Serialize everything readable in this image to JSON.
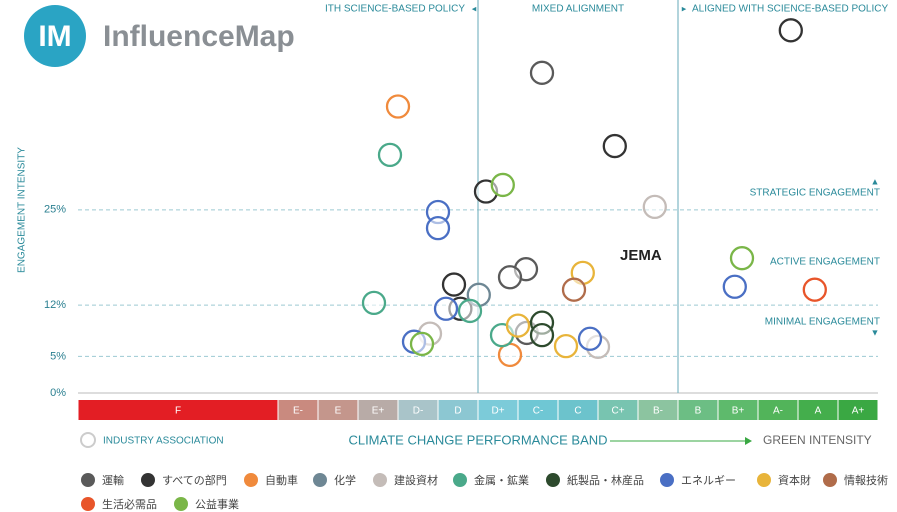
{
  "brand": {
    "logo": "IM",
    "name": "InfluenceMap"
  },
  "chart_data": {
    "type": "scatter",
    "ylabel": "ENGAGEMENT INTENSITY",
    "xlabel": "CLIMATE CHANGE PERFORMANCE BAND",
    "green_label": "GREEN INTENSITY",
    "association_label": "INDUSTRY ASSOCIATION",
    "annotation": "JEMA",
    "xlim": [
      0,
      100
    ],
    "ylim": [
      0,
      52
    ],
    "yticks": [
      {
        "value": 0,
        "label": "0%"
      },
      {
        "value": 5,
        "label": "5%"
      },
      {
        "value": 12,
        "label": "12%"
      },
      {
        "value": 25,
        "label": "25%"
      }
    ],
    "grid": true,
    "region_lines": [
      50,
      75
    ],
    "regions": [
      "ITH SCIENCE-BASED POLICY",
      "MIXED ALIGNMENT",
      "ALIGNED WITH SCIENCE-BASED POLICY"
    ],
    "engagement_levels": [
      "STRATEGIC ENGAGEMENT",
      "ACTIVE ENGAGEMENT",
      "MINIMAL ENGAGEMENT"
    ],
    "bands": [
      "F",
      "E-",
      "E",
      "E+",
      "D-",
      "D",
      "D+",
      "C-",
      "C",
      "C+",
      "B-",
      "B",
      "B+",
      "A-",
      "A",
      "A+"
    ],
    "band_edges": [
      0,
      25,
      30,
      35,
      40,
      45,
      50,
      55,
      60,
      65,
      70,
      75,
      80,
      85,
      90,
      95,
      100
    ],
    "band_colors": [
      "#e31e24",
      "#c98a7f",
      "#c4968c",
      "#b8aba7",
      "#a9c4c9",
      "#8cc7d2",
      "#7ccbd9",
      "#6fc7d4",
      "#6cc3cc",
      "#78c4b0",
      "#8cc4a0",
      "#6cbe84",
      "#5eba6c",
      "#52b45a",
      "#44ae4c",
      "#3aa843"
    ],
    "series": [
      {
        "name": "運輸",
        "color": "#5a5a5a",
        "x": [
          58,
          56,
          54,
          56.1
        ],
        "y": [
          43.7,
          16.9,
          15.8,
          8.2
        ]
      },
      {
        "name": "すべての部門",
        "color": "#333333",
        "x": [
          89.1,
          67.1,
          51,
          47,
          47.8
        ],
        "y": [
          49.5,
          33.7,
          27.5,
          14.8,
          11.5
        ]
      },
      {
        "name": "自動車",
        "color": "#f08a3c",
        "x": [
          40,
          54
        ],
        "y": [
          39.1,
          5.2
        ]
      },
      {
        "name": "化学",
        "color": "#6e8794",
        "x": [
          50.1
        ],
        "y": [
          13.4
        ]
      },
      {
        "name": "建設資材",
        "color": "#c4bcb8",
        "x": [
          72.1,
          65,
          44
        ],
        "y": [
          25.4,
          6.3,
          8.1
        ]
      },
      {
        "name": "金属・鉱業",
        "color": "#4aa98a",
        "x": [
          39,
          37,
          49,
          53
        ],
        "y": [
          32.5,
          12.3,
          11.2,
          7.9
        ]
      },
      {
        "name": "紙製品・林産品",
        "color": "#2d4a2d",
        "x": [
          58,
          58
        ],
        "y": [
          9.6,
          7.9
        ]
      },
      {
        "name": "エネルギー",
        "color": "#4a6fc4",
        "x": [
          45,
          45,
          82.1,
          46,
          64,
          42
        ],
        "y": [
          24.7,
          22.5,
          14.5,
          11.5,
          7.4,
          7
        ]
      },
      {
        "name": "資本財",
        "color": "#e8b43a",
        "x": [
          63.1,
          55,
          61
        ],
        "y": [
          16.4,
          9.2,
          6.4
        ]
      },
      {
        "name": "情報技術",
        "color": "#b06c4a",
        "x": [
          62
        ],
        "y": [
          14.1
        ]
      },
      {
        "name": "生活必需品",
        "color": "#e8552a",
        "x": [
          92.1
        ],
        "y": [
          14.1
        ]
      },
      {
        "name": "公益事業",
        "color": "#7ab648",
        "x": [
          53.1,
          83,
          43
        ],
        "y": [
          28.4,
          18.4,
          6.7
        ]
      }
    ]
  }
}
